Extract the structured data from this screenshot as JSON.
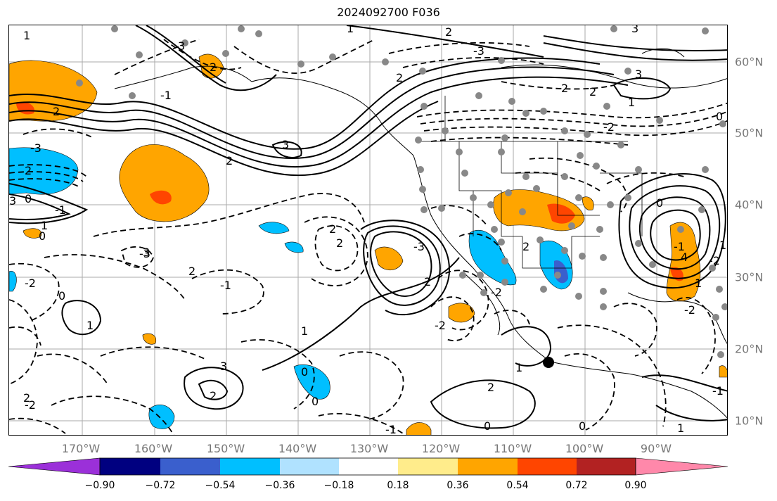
{
  "title": "2024092700 F036",
  "map": {
    "lon_labels": [
      "170°W",
      "160°W",
      "150°W",
      "140°W",
      "130°W",
      "120°W",
      "110°W",
      "100°W",
      "90°W"
    ],
    "lat_labels": [
      "60°N",
      "50°N",
      "40°N",
      "30°N",
      "20°N",
      "10°N"
    ],
    "contour_labels": [
      "2",
      "2",
      "0",
      "1",
      "3",
      "2",
      "3",
      "2",
      "1",
      "0",
      "-3",
      "0",
      "-2",
      "2",
      "-1",
      "-2",
      "2",
      "2",
      "-3",
      "2",
      "3",
      "2",
      "3",
      "1",
      "1",
      "0",
      "1",
      "2",
      "-2",
      "-1",
      "0",
      "2",
      "0",
      "0",
      "1",
      "-1",
      "3",
      "2",
      "1",
      "-3",
      "2",
      "3",
      "-3",
      "3",
      "-1",
      "2",
      "1",
      "-2",
      "0",
      "-1",
      "-2",
      "0",
      "2",
      "2",
      "4",
      "-2",
      "1",
      "-2",
      "1",
      "-1"
    ]
  },
  "colorbar": {
    "colors": [
      "#9b30d9",
      "#000080",
      "#3a5fcd",
      "#00bfff",
      "#b0e2ff",
      "#ffffff",
      "#ffec8b",
      "#ffa500",
      "#ff4500",
      "#b22222",
      "#ff88aa"
    ],
    "ticks": [
      "−0.90",
      "−0.72",
      "−0.54",
      "−0.36",
      "−0.18",
      "0.18",
      "0.36",
      "0.54",
      "0.72",
      "0.90"
    ]
  }
}
